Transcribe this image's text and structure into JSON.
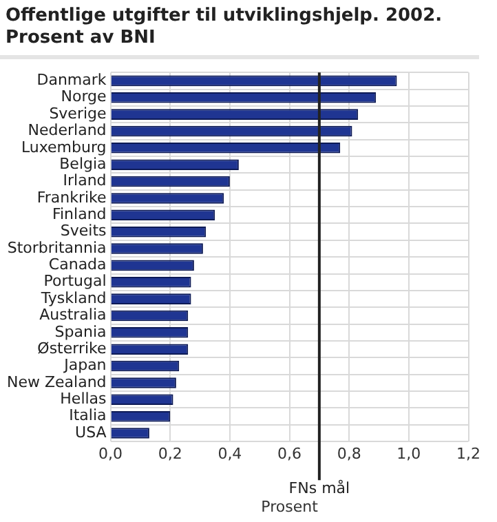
{
  "chart_data": {
    "type": "bar",
    "orientation": "horizontal",
    "title": "Offentlige utgifter til utviklingshjelp. 2002. Prosent av BNI",
    "xlabel": "Prosent",
    "categories": [
      "Danmark",
      "Norge",
      "Sverige",
      "Nederland",
      "Luxemburg",
      "Belgia",
      "Irland",
      "Frankrike",
      "Finland",
      "Sveits",
      "Storbritannia",
      "Canada",
      "Portugal",
      "Tyskland",
      "Australia",
      "Spania",
      "Østerrike",
      "Japan",
      "New Zealand",
      "Hellas",
      "Italia",
      "USA"
    ],
    "values": [
      0.96,
      0.89,
      0.83,
      0.81,
      0.77,
      0.43,
      0.4,
      0.38,
      0.35,
      0.32,
      0.31,
      0.28,
      0.27,
      0.27,
      0.26,
      0.26,
      0.26,
      0.23,
      0.22,
      0.21,
      0.2,
      0.13
    ],
    "color": "#1f3592",
    "xlim": [
      0,
      1.2
    ],
    "xticks": [
      {
        "value": 0,
        "label": "0,0"
      },
      {
        "value": 0.2,
        "label": "0,2"
      },
      {
        "value": 0.4,
        "label": "0,4"
      },
      {
        "value": 0.6,
        "label": "0,6"
      },
      {
        "value": 0.8,
        "label": "0,8"
      },
      {
        "value": 1,
        "label": "1,0"
      },
      {
        "value": 1.2,
        "label": "1,2"
      }
    ],
    "ref_lines": [
      {
        "axis": "x",
        "value": 0.7,
        "label": "FNs mål",
        "color": "#222222"
      }
    ],
    "grid": true,
    "legend": false
  }
}
